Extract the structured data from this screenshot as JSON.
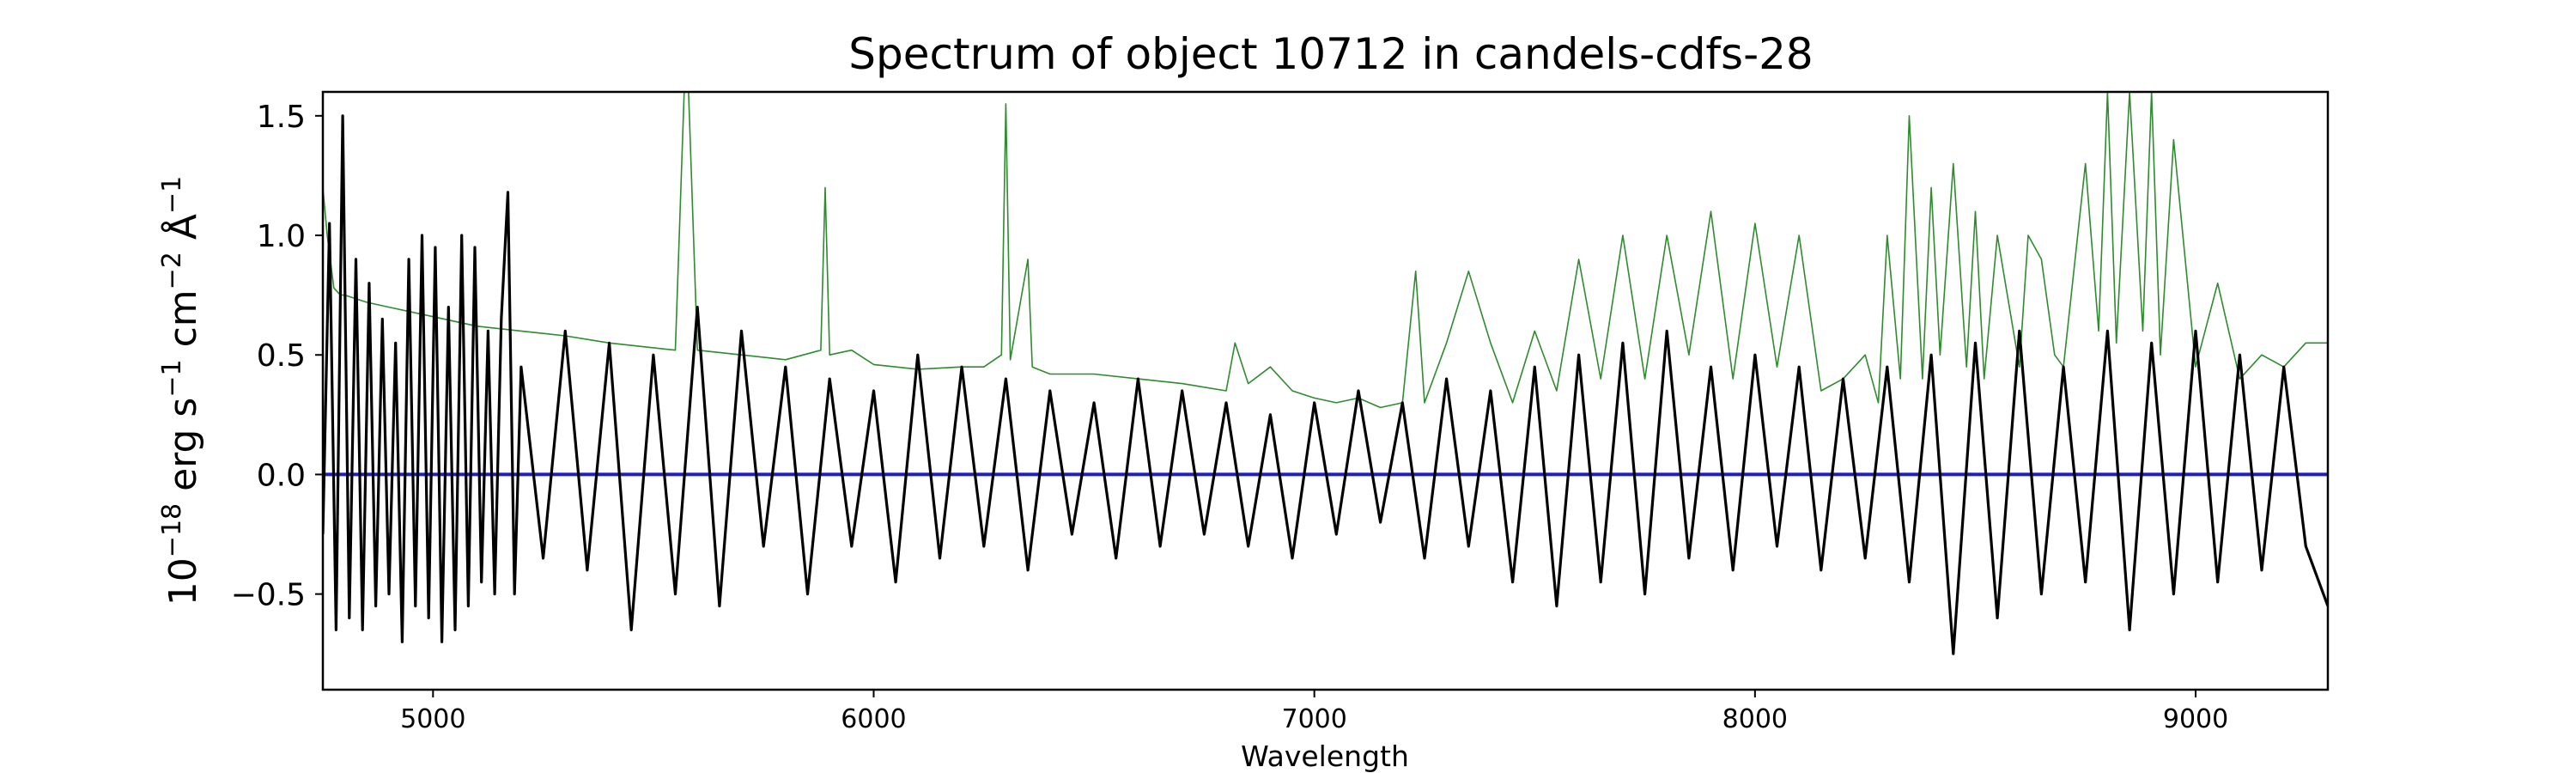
{
  "chart_data": {
    "type": "line",
    "title": "Spectrum of object 10712 in candels-cdfs-28",
    "xlabel": "Wavelength",
    "ylabel": {
      "base": "10",
      "exp": "−18",
      "text": " erg s",
      "sexp": "−1",
      "cm": " cm",
      "cmexp": "−2",
      "ang": " Å",
      "angexp": "−1"
    },
    "xlim": [
      4750,
      9300
    ],
    "ylim": [
      -0.9,
      1.6
    ],
    "xticks": [
      5000,
      6000,
      7000,
      8000,
      9000
    ],
    "xtick_labels": [
      "5000",
      "6000",
      "7000",
      "8000",
      "9000"
    ],
    "yticks": [
      -0.5,
      0.0,
      0.5,
      1.0,
      1.5
    ],
    "ytick_labels": [
      "−0.5",
      "0.0",
      "0.5",
      "1.0",
      "1.5"
    ],
    "grid": false,
    "legend": "none",
    "series": [
      {
        "role": "flux",
        "color": "#000000",
        "x": [
          4750,
          4765,
          4780,
          4795,
          4810,
          4825,
          4840,
          4855,
          4870,
          4885,
          4900,
          4915,
          4930,
          4945,
          4960,
          4975,
          4990,
          5005,
          5020,
          5035,
          5050,
          5065,
          5080,
          5095,
          5110,
          5125,
          5140,
          5155,
          5170,
          5185,
          5200,
          5250,
          5300,
          5350,
          5400,
          5450,
          5500,
          5550,
          5600,
          5650,
          5700,
          5750,
          5800,
          5850,
          5900,
          5950,
          6000,
          6050,
          6100,
          6150,
          6200,
          6250,
          6300,
          6350,
          6400,
          6450,
          6500,
          6550,
          6600,
          6650,
          6700,
          6750,
          6800,
          6850,
          6900,
          6950,
          7000,
          7050,
          7100,
          7150,
          7200,
          7250,
          7300,
          7350,
          7400,
          7450,
          7500,
          7550,
          7600,
          7650,
          7700,
          7750,
          7800,
          7850,
          7900,
          7950,
          8000,
          8050,
          8100,
          8150,
          8200,
          8250,
          8300,
          8350,
          8400,
          8450,
          8500,
          8550,
          8600,
          8650,
          8700,
          8750,
          8800,
          8850,
          8900,
          8950,
          9000,
          9050,
          9100,
          9150,
          9200,
          9250,
          9300
        ],
        "y": [
          -0.25,
          1.05,
          -0.65,
          1.5,
          -0.6,
          0.9,
          -0.65,
          0.8,
          -0.55,
          0.65,
          -0.5,
          0.55,
          -0.7,
          0.9,
          -0.55,
          1.0,
          -0.6,
          0.95,
          -0.7,
          0.7,
          -0.65,
          1.0,
          -0.55,
          0.95,
          -0.45,
          0.6,
          -0.5,
          0.65,
          1.18,
          -0.5,
          0.45,
          -0.35,
          0.6,
          -0.4,
          0.55,
          -0.65,
          0.5,
          -0.5,
          0.7,
          -0.55,
          0.6,
          -0.3,
          0.45,
          -0.5,
          0.4,
          -0.3,
          0.35,
          -0.45,
          0.5,
          -0.35,
          0.45,
          -0.3,
          0.4,
          -0.4,
          0.35,
          -0.25,
          0.3,
          -0.35,
          0.4,
          -0.3,
          0.35,
          -0.25,
          0.3,
          -0.3,
          0.25,
          -0.35,
          0.3,
          -0.25,
          0.35,
          -0.2,
          0.3,
          -0.35,
          0.4,
          -0.3,
          0.35,
          -0.45,
          0.45,
          -0.55,
          0.5,
          -0.45,
          0.55,
          -0.5,
          0.6,
          -0.35,
          0.45,
          -0.4,
          0.5,
          -0.3,
          0.45,
          -0.4,
          0.4,
          -0.35,
          0.45,
          -0.45,
          0.5,
          -0.75,
          0.55,
          -0.6,
          0.6,
          -0.5,
          0.45,
          -0.45,
          0.6,
          -0.65,
          0.55,
          -0.5,
          0.6,
          -0.45,
          0.5,
          -0.4,
          0.45,
          -0.3,
          -0.55
        ]
      },
      {
        "role": "error",
        "color": "#2e8b2e",
        "x": [
          4750,
          4760,
          4775,
          4790,
          4800,
          4850,
          4900,
          5000,
          5100,
          5200,
          5300,
          5400,
          5500,
          5550,
          5570,
          5580,
          5600,
          5700,
          5800,
          5880,
          5890,
          5900,
          5950,
          6000,
          6100,
          6200,
          6250,
          6290,
          6300,
          6310,
          6350,
          6360,
          6400,
          6500,
          6600,
          6700,
          6800,
          6820,
          6850,
          6900,
          6950,
          7000,
          7050,
          7100,
          7150,
          7200,
          7230,
          7250,
          7300,
          7350,
          7400,
          7450,
          7500,
          7550,
          7600,
          7650,
          7700,
          7750,
          7800,
          7850,
          7900,
          7950,
          8000,
          8050,
          8100,
          8150,
          8200,
          8250,
          8280,
          8300,
          8330,
          8350,
          8380,
          8400,
          8420,
          8450,
          8480,
          8500,
          8520,
          8550,
          8600,
          8620,
          8650,
          8680,
          8700,
          8750,
          8780,
          8800,
          8820,
          8850,
          8880,
          8900,
          8920,
          8950,
          9000,
          9050,
          9100,
          9150,
          9200,
          9250,
          9300
        ],
        "y": [
          1.2,
          1.0,
          0.78,
          0.75,
          0.75,
          0.72,
          0.7,
          0.66,
          0.62,
          0.6,
          0.58,
          0.55,
          0.53,
          0.52,
          1.6,
          1.6,
          0.52,
          0.5,
          0.48,
          0.52,
          1.2,
          0.5,
          0.52,
          0.46,
          0.44,
          0.45,
          0.45,
          0.5,
          1.55,
          0.48,
          0.9,
          0.45,
          0.42,
          0.42,
          0.4,
          0.38,
          0.35,
          0.55,
          0.38,
          0.45,
          0.35,
          0.32,
          0.3,
          0.32,
          0.28,
          0.3,
          0.85,
          0.3,
          0.55,
          0.85,
          0.55,
          0.3,
          0.6,
          0.35,
          0.9,
          0.4,
          1.0,
          0.4,
          1.0,
          0.5,
          1.1,
          0.4,
          1.05,
          0.45,
          1.0,
          0.35,
          0.4,
          0.5,
          0.3,
          1.0,
          0.4,
          1.5,
          0.4,
          1.2,
          0.5,
          1.3,
          0.45,
          1.1,
          0.4,
          1.0,
          0.45,
          1.0,
          0.9,
          0.5,
          0.45,
          1.3,
          0.6,
          1.6,
          0.55,
          1.6,
          0.6,
          1.6,
          0.5,
          1.4,
          0.45,
          0.8,
          0.4,
          0.5,
          0.45,
          0.55,
          0.55
        ]
      },
      {
        "role": "model",
        "color": "#1f1fbf",
        "x": [
          4750,
          9300
        ],
        "y": [
          0.0,
          0.0
        ]
      }
    ]
  }
}
